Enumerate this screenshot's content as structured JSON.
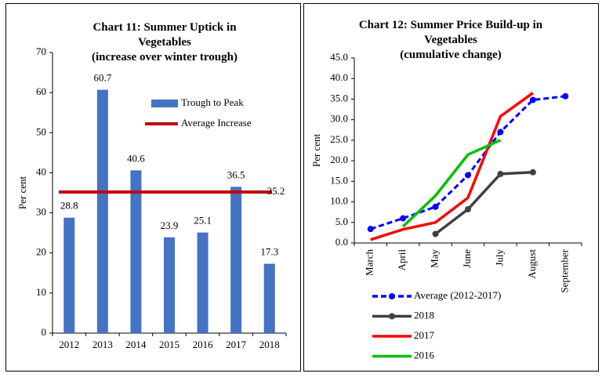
{
  "chart_data": [
    {
      "type": "bar",
      "title": "Chart 11: Summer Uptick in Vegetables",
      "subtitle": "(increase over winter trough)",
      "y_label": "Per cent",
      "categories": [
        "2012",
        "2013",
        "2014",
        "2015",
        "2016",
        "2017",
        "2018"
      ],
      "series": [
        {
          "name": "Trough to Peak",
          "color": "#4472c4",
          "values": [
            28.8,
            60.7,
            40.6,
            23.9,
            25.1,
            36.5,
            17.3
          ]
        }
      ],
      "reference_line": {
        "name": "Average Increase",
        "value": 35.2,
        "color": "#c00000"
      },
      "ylim": [
        0,
        70
      ],
      "yticks": [
        0,
        10,
        20,
        30,
        40,
        50,
        60,
        70
      ],
      "grid": false
    },
    {
      "type": "line",
      "title": "Chart 12: Summer Price Build-up in Vegetables",
      "subtitle": "(cumulative change)",
      "y_label": "Per cent",
      "categories": [
        "March",
        "April",
        "May",
        "June",
        "July",
        "August",
        "September"
      ],
      "series": [
        {
          "name": "Average (2012-2017)",
          "color": "#0000ff",
          "dashed": true,
          "markers": true,
          "values": [
            3.4,
            6.0,
            8.8,
            16.5,
            27.0,
            34.8,
            35.7
          ]
        },
        {
          "name": "2018",
          "color": "#404040",
          "dashed": false,
          "markers": true,
          "values": [
            null,
            null,
            2.2,
            8.2,
            16.8,
            17.2,
            null
          ]
        },
        {
          "name": "2017",
          "color": "#ff0000",
          "dashed": false,
          "markers": false,
          "values": [
            0.8,
            3.3,
            5.0,
            11.0,
            30.8,
            36.5,
            null
          ]
        },
        {
          "name": "2016",
          "color": "#00c000",
          "dashed": false,
          "markers": false,
          "values": [
            null,
            4.0,
            11.5,
            21.5,
            25.0,
            null,
            null
          ]
        }
      ],
      "ylim": [
        0,
        45
      ],
      "yticks": [
        {
          "value": 0,
          "label": "0.0"
        },
        {
          "value": 5,
          "label": "5.0"
        },
        {
          "value": 10,
          "label": "10.0"
        },
        {
          "value": 15,
          "label": "15.0"
        },
        {
          "value": 20,
          "label": "20.0"
        },
        {
          "value": 25,
          "label": "25.0"
        },
        {
          "value": 30,
          "label": "30.0"
        },
        {
          "value": 35,
          "label": "35.0"
        },
        {
          "value": 40,
          "label": "40.0"
        },
        {
          "value": 45,
          "label": "45.0"
        }
      ],
      "grid": false
    }
  ]
}
